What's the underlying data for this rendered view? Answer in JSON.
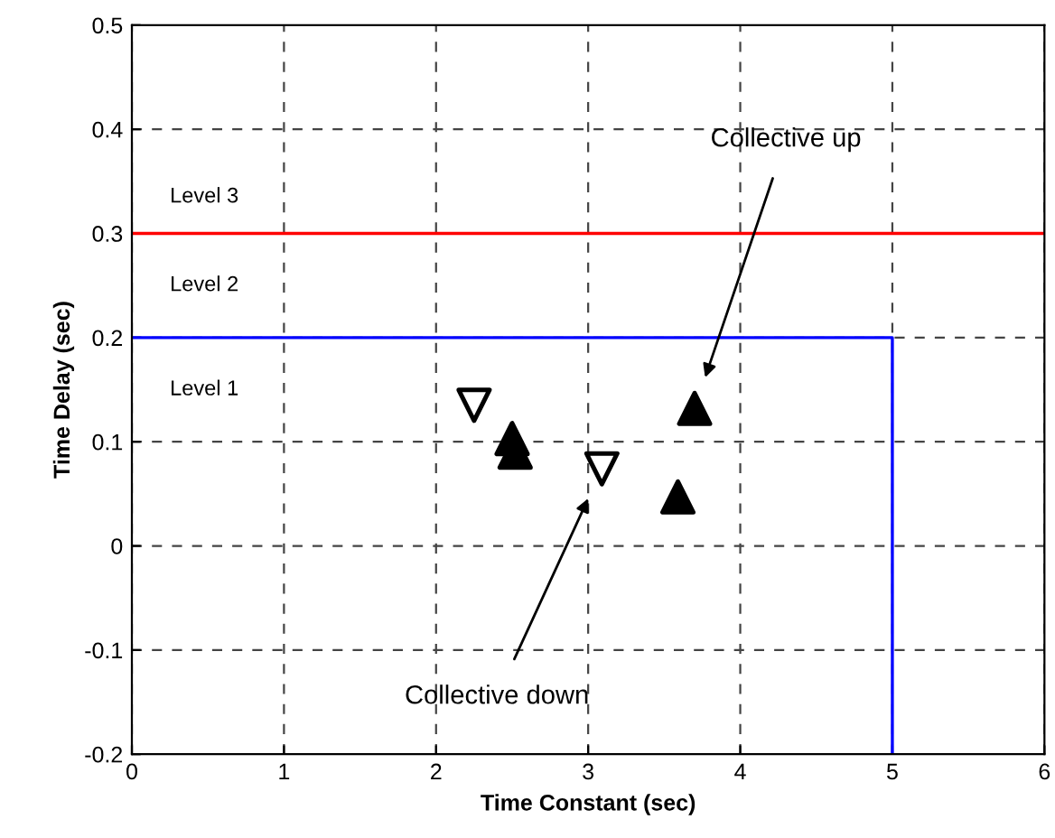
{
  "chart_data": {
    "type": "scatter",
    "xlabel": "Time Constant (sec)",
    "ylabel": "Time Delay (sec)",
    "xlim": [
      0,
      6
    ],
    "xticks": [
      0,
      1,
      2,
      3,
      4,
      5,
      6
    ],
    "ylim": [
      -0.2,
      0.5
    ],
    "yticks": [
      -0.2,
      -0.1,
      0,
      0.1,
      0.2,
      0.3,
      0.4,
      0.5
    ],
    "grid": true,
    "series": [
      {
        "marker": "triangle_down",
        "color": "#000000",
        "x": [
          2.25,
          3.09
        ],
        "values": [
          0.135,
          0.074
        ]
      },
      {
        "marker": "triangle",
        "color": "#000000",
        "x": [
          2.5,
          2.52,
          3.7,
          3.59
        ],
        "values": [
          0.103,
          0.09,
          0.132,
          0.047
        ]
      },
      {
        "type": "line",
        "marker": "none",
        "color": "#0000ff",
        "x": [
          0,
          5,
          5
        ],
        "values": [
          0.2,
          0.2,
          -0.2
        ]
      }
    ],
    "ref_lines": [
      {
        "axis": "y",
        "value": 0.3,
        "color": "#ff0000"
      }
    ],
    "annotations": [
      "Level 3",
      "Level 2",
      "Level 1",
      "Collective up",
      "Collective down"
    ]
  }
}
